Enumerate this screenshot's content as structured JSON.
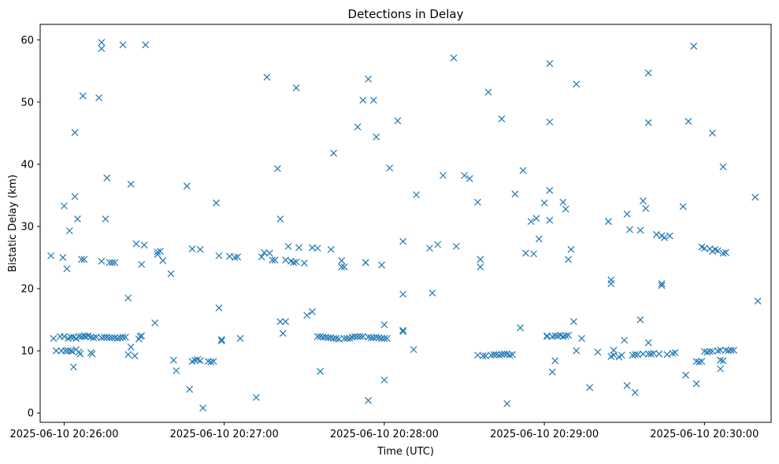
{
  "chart_data": {
    "type": "scatter",
    "title": "Detections in Delay",
    "xlabel": "Time (UTC)",
    "ylabel": "Bistatic Delay (km)",
    "marker": "x",
    "color": "#1f77b4",
    "grid": false,
    "x_unit": "seconds after 2025-06-10 20:26:00",
    "xlim": [
      -9,
      265
    ],
    "ylim": [
      -1.5,
      62.5
    ],
    "x_ticks": [
      {
        "value": 0,
        "label": "2025-06-10 20:26:00"
      },
      {
        "value": 60,
        "label": "2025-06-10 20:27:00"
      },
      {
        "value": 120,
        "label": "2025-06-10 20:28:00"
      },
      {
        "value": 180,
        "label": "2025-06-10 20:29:00"
      },
      {
        "value": 240,
        "label": "2025-06-10 20:30:00"
      }
    ],
    "y_ticks": [
      {
        "value": 0,
        "label": "0"
      },
      {
        "value": 10,
        "label": "10"
      },
      {
        "value": 20,
        "label": "20"
      },
      {
        "value": 30,
        "label": "30"
      },
      {
        "value": 40,
        "label": "40"
      },
      {
        "value": 50,
        "label": "50"
      },
      {
        "value": 60,
        "label": "60"
      }
    ],
    "series": [
      {
        "name": "detections",
        "points": [
          [
            -5,
            25.3
          ],
          [
            -4,
            12
          ],
          [
            -3,
            10
          ],
          [
            -1.5,
            12.3
          ],
          [
            -1,
            10
          ],
          [
            -0.5,
            25
          ],
          [
            0,
            12.3
          ],
          [
            0,
            33.3
          ],
          [
            0.5,
            10
          ],
          [
            1,
            23.2
          ],
          [
            1.5,
            12
          ],
          [
            1.5,
            10
          ],
          [
            2,
            29.3
          ],
          [
            2.5,
            12.2
          ],
          [
            2.5,
            10
          ],
          [
            3,
            9.9
          ],
          [
            3.5,
            12.2
          ],
          [
            3.5,
            7.4
          ],
          [
            4,
            34.8
          ],
          [
            4,
            45.1
          ],
          [
            4.5,
            12
          ],
          [
            4.5,
            10.2
          ],
          [
            5,
            31.2
          ],
          [
            5.5,
            12.3
          ],
          [
            5.5,
            9.8
          ],
          [
            6,
            9.5
          ],
          [
            6.5,
            12.3
          ],
          [
            6.5,
            24.7
          ],
          [
            7,
            51
          ],
          [
            7.5,
            12.4
          ],
          [
            7.5,
            24.7
          ],
          [
            8,
            12.3
          ],
          [
            9,
            12.4
          ],
          [
            10,
            12.2
          ],
          [
            10,
            9.7
          ],
          [
            10.5,
            9.5
          ],
          [
            11,
            12.1
          ],
          [
            12,
            12.2
          ],
          [
            13,
            50.7
          ],
          [
            14,
            12.1
          ],
          [
            14,
            24.4
          ],
          [
            14,
            59.6
          ],
          [
            14,
            58.6
          ],
          [
            15,
            12.2
          ],
          [
            15.5,
            31.2
          ],
          [
            16,
            37.8
          ],
          [
            16,
            12.2
          ],
          [
            17,
            12.1
          ],
          [
            17,
            24.2
          ],
          [
            18,
            24.2
          ],
          [
            18,
            12.1
          ],
          [
            19,
            12.1
          ],
          [
            19,
            24.2
          ],
          [
            20,
            12
          ],
          [
            21,
            12.1
          ],
          [
            22,
            59.2
          ],
          [
            22,
            12.2
          ],
          [
            23,
            12.2
          ],
          [
            24,
            9.4
          ],
          [
            24,
            18.5
          ],
          [
            25,
            36.8
          ],
          [
            25,
            10.6
          ],
          [
            26.5,
            9.2
          ],
          [
            27,
            27.2
          ],
          [
            28,
            11.9
          ],
          [
            28.5,
            12.3
          ],
          [
            29,
            12.4
          ],
          [
            29,
            23.9
          ],
          [
            30,
            27
          ],
          [
            30.5,
            59.2
          ],
          [
            34,
            14.5
          ],
          [
            35,
            25.9
          ],
          [
            35,
            25.5
          ],
          [
            36,
            26
          ],
          [
            37,
            24.5
          ],
          [
            40,
            22.4
          ],
          [
            41,
            8.5
          ],
          [
            42,
            6.8
          ],
          [
            46,
            36.5
          ],
          [
            47,
            3.8
          ],
          [
            48,
            8.3
          ],
          [
            48,
            26.4
          ],
          [
            49,
            8.5
          ],
          [
            50,
            8.6
          ],
          [
            51,
            8.4
          ],
          [
            51,
            26.3
          ],
          [
            52,
            0.8
          ],
          [
            54,
            8.3
          ],
          [
            55,
            8.2
          ],
          [
            56,
            8.3
          ],
          [
            57,
            33.8
          ],
          [
            58,
            25.3
          ],
          [
            58,
            16.9
          ],
          [
            59,
            11.8
          ],
          [
            59,
            11.6
          ],
          [
            62,
            25.2
          ],
          [
            64,
            25
          ],
          [
            65,
            25.1
          ],
          [
            66,
            12
          ],
          [
            72,
            2.5
          ],
          [
            74,
            25.1
          ],
          [
            75,
            25.8
          ],
          [
            76,
            54
          ],
          [
            77,
            25.7
          ],
          [
            78,
            24.6
          ],
          [
            79,
            24.6
          ],
          [
            80,
            39.3
          ],
          [
            81,
            31.2
          ],
          [
            81,
            14.7
          ],
          [
            82,
            12.8
          ],
          [
            83,
            24.6
          ],
          [
            83,
            14.7
          ],
          [
            84,
            26.8
          ],
          [
            85,
            24.4
          ],
          [
            86,
            24.2
          ],
          [
            87,
            24.3
          ],
          [
            87,
            52.3
          ],
          [
            88,
            26.6
          ],
          [
            90,
            24.1
          ],
          [
            91,
            15.7
          ],
          [
            93,
            16.3
          ],
          [
            93,
            26.6
          ],
          [
            95,
            12.3
          ],
          [
            95,
            26.5
          ],
          [
            96,
            12.3
          ],
          [
            96,
            6.7
          ],
          [
            97,
            12.2
          ],
          [
            98,
            12.2
          ],
          [
            99,
            12.1
          ],
          [
            100,
            12.1
          ],
          [
            100,
            26.3
          ],
          [
            101,
            12
          ],
          [
            101,
            41.8
          ],
          [
            102,
            12
          ],
          [
            103,
            11.9
          ],
          [
            104,
            24.5
          ],
          [
            104,
            23.5
          ],
          [
            105,
            12
          ],
          [
            105,
            23.5
          ],
          [
            106,
            12
          ],
          [
            107,
            12
          ],
          [
            108,
            12.2
          ],
          [
            109,
            12.3
          ],
          [
            110,
            12.3
          ],
          [
            110,
            46
          ],
          [
            111,
            12.3
          ],
          [
            112,
            50.3
          ],
          [
            112,
            12.3
          ],
          [
            113,
            24.2
          ],
          [
            113,
            24.2
          ],
          [
            114,
            53.7
          ],
          [
            114,
            12.2
          ],
          [
            114,
            2.0
          ],
          [
            115,
            12.1
          ],
          [
            116,
            12.1
          ],
          [
            116,
            50.3
          ],
          [
            117,
            12.2
          ],
          [
            117,
            44.4
          ],
          [
            118,
            12.1
          ],
          [
            119,
            12
          ],
          [
            119,
            23.8
          ],
          [
            120,
            14.2
          ],
          [
            120,
            5.3
          ],
          [
            120,
            12
          ],
          [
            121,
            12
          ],
          [
            122,
            39.4
          ],
          [
            125,
            47
          ],
          [
            127,
            19.1
          ],
          [
            127,
            13.1
          ],
          [
            127,
            13.3
          ],
          [
            127,
            27.6
          ],
          [
            131,
            10.2
          ],
          [
            132,
            35.1
          ],
          [
            137,
            26.5
          ],
          [
            138,
            19.3
          ],
          [
            140,
            27.1
          ],
          [
            142,
            38.2
          ],
          [
            146,
            57.1
          ],
          [
            147,
            26.8
          ],
          [
            150,
            38.2
          ],
          [
            152,
            37.7
          ],
          [
            155,
            33.9
          ],
          [
            155,
            9.3
          ],
          [
            156,
            23.5
          ],
          [
            156,
            24.7
          ],
          [
            157,
            9.2
          ],
          [
            158,
            9.2
          ],
          [
            159,
            51.6
          ],
          [
            160,
            9.3
          ],
          [
            161,
            9.4
          ],
          [
            162,
            9.4
          ],
          [
            163,
            9.3
          ],
          [
            164,
            47.3
          ],
          [
            164,
            9.4
          ],
          [
            165,
            9.5
          ],
          [
            166,
            1.5
          ],
          [
            166,
            9.5
          ],
          [
            167,
            9.3
          ],
          [
            168,
            9.4
          ],
          [
            169,
            35.2
          ],
          [
            171,
            13.7
          ],
          [
            172,
            39
          ],
          [
            173,
            25.7
          ],
          [
            175,
            30.8
          ],
          [
            176,
            25.6
          ],
          [
            177,
            31.3
          ],
          [
            178,
            28
          ],
          [
            180,
            33.8
          ],
          [
            181,
            12.4
          ],
          [
            181,
            12.3
          ],
          [
            182,
            56.2
          ],
          [
            182,
            46.8
          ],
          [
            182,
            35.8
          ],
          [
            182,
            31
          ],
          [
            183,
            12.3
          ],
          [
            183,
            6.6
          ],
          [
            184,
            12.4
          ],
          [
            184,
            8.4
          ],
          [
            185,
            12.4
          ],
          [
            186,
            12.5
          ],
          [
            187,
            33.9
          ],
          [
            187,
            12.3
          ],
          [
            188,
            12.4
          ],
          [
            188,
            32.8
          ],
          [
            189,
            12.5
          ],
          [
            189,
            24.7
          ],
          [
            190,
            26.3
          ],
          [
            191,
            14.7
          ],
          [
            192,
            10
          ],
          [
            192,
            52.9
          ],
          [
            194,
            12
          ],
          [
            197,
            4.1
          ],
          [
            200,
            9.8
          ],
          [
            204,
            30.8
          ],
          [
            204,
            30.8
          ],
          [
            205,
            21.4
          ],
          [
            205,
            20.8
          ],
          [
            205,
            9.1
          ],
          [
            206,
            9.3
          ],
          [
            206,
            10.1
          ],
          [
            208,
            9
          ],
          [
            209,
            9.3
          ],
          [
            210,
            11.7
          ],
          [
            211,
            4.4
          ],
          [
            211,
            32
          ],
          [
            212,
            29.5
          ],
          [
            213,
            9.3
          ],
          [
            214,
            3.3
          ],
          [
            214,
            9.4
          ],
          [
            215,
            9.4
          ],
          [
            216,
            15
          ],
          [
            216,
            29.4
          ],
          [
            217,
            34.1
          ],
          [
            217,
            9.5
          ],
          [
            218,
            32.9
          ],
          [
            219,
            9.5
          ],
          [
            219,
            11.3
          ],
          [
            219,
            46.7
          ],
          [
            219,
            54.7
          ],
          [
            220,
            9.5
          ],
          [
            221,
            9.6
          ],
          [
            222,
            28.7
          ],
          [
            223,
            9.5
          ],
          [
            224,
            20.8
          ],
          [
            224,
            20.5
          ],
          [
            224,
            28.5
          ],
          [
            225,
            28.2
          ],
          [
            226,
            9.4
          ],
          [
            227,
            28.5
          ],
          [
            228,
            9.6
          ],
          [
            229,
            9.7
          ],
          [
            232,
            33.2
          ],
          [
            233,
            6.1
          ],
          [
            234,
            46.9
          ],
          [
            236,
            59
          ],
          [
            237,
            4.7
          ],
          [
            237,
            8.3
          ],
          [
            238,
            8.2
          ],
          [
            239,
            8.3
          ],
          [
            239,
            26.7
          ],
          [
            240,
            9.9
          ],
          [
            240,
            26.5
          ],
          [
            241,
            9.8
          ],
          [
            242,
            26.4
          ],
          [
            242,
            9.9
          ],
          [
            243,
            45
          ],
          [
            243,
            9.9
          ],
          [
            243,
            26
          ],
          [
            244,
            26.3
          ],
          [
            245,
            10
          ],
          [
            245,
            26.1
          ],
          [
            246,
            10.1
          ],
          [
            246,
            8.5
          ],
          [
            246,
            7.1
          ],
          [
            247,
            8.4
          ],
          [
            247,
            39.6
          ],
          [
            247,
            25.7
          ],
          [
            248,
            25.8
          ],
          [
            248,
            10.1
          ],
          [
            249,
            10
          ],
          [
            250,
            10.1
          ],
          [
            251,
            10.1
          ],
          [
            259,
            34.7
          ],
          [
            260,
            18
          ]
        ]
      }
    ]
  }
}
